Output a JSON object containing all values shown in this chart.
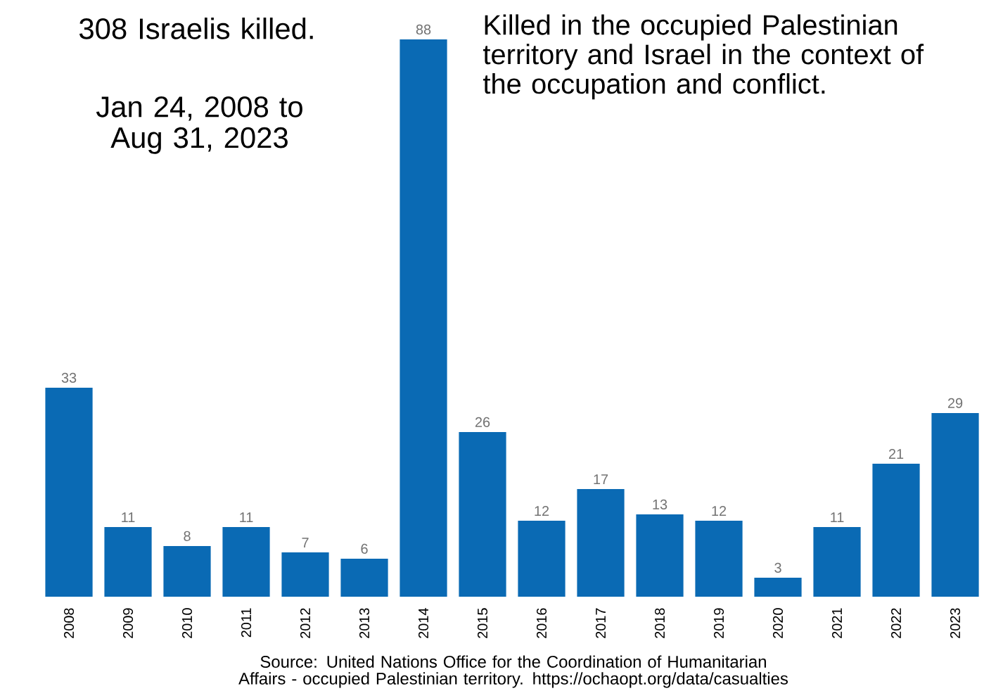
{
  "chart_data": {
    "type": "bar",
    "title": "308 Israelis killed.",
    "subtitle": "Jan 24, 2008 to Aug 31, 2023",
    "annotations": [
      "Killed in the occupied Palestinian territory and Israel in the context of the occupation and conflict.",
      "Source: United Nations Office for the Coordination of Humanitarian Affairs - occupied Palestinian territory. https://ochaopt.org/data/casualties"
    ],
    "categories": [
      "2008",
      "2009",
      "2010",
      "2011",
      "2012",
      "2013",
      "2014",
      "2015",
      "2016",
      "2017",
      "2018",
      "2019",
      "2020",
      "2021",
      "2022",
      "2023"
    ],
    "values": [
      33,
      11,
      8,
      11,
      7,
      6,
      88,
      26,
      12,
      17,
      13,
      12,
      3,
      11,
      21,
      29
    ],
    "color": "#0a6ab4",
    "data_labels": true,
    "grid": false
  }
}
